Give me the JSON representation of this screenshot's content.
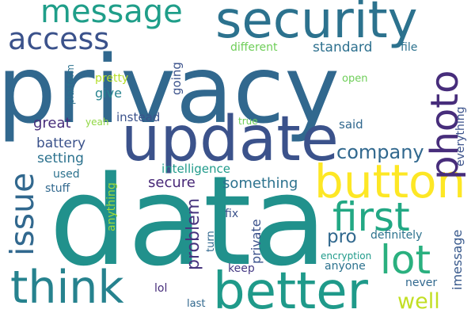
{
  "colors": {
    "deep_blue": "#3b528b",
    "blue": "#31688e",
    "steel_blue": "#2c728e",
    "teal_dark": "#26828e",
    "teal": "#1f9a8a",
    "green": "#35b779",
    "light_green": "#6ece58",
    "lime": "#b5de2b",
    "yellow": "#fde725",
    "indigo": "#482878",
    "purple": "#472d7b"
  },
  "words": [
    {
      "text": "privacy",
      "color": "#31688e"
    },
    {
      "text": "data",
      "color": "#21918c"
    },
    {
      "text": "security",
      "color": "#2c728e"
    },
    {
      "text": "update",
      "color": "#3b528b"
    },
    {
      "text": "better",
      "color": "#1f9a8a"
    },
    {
      "text": "think",
      "color": "#26828e"
    },
    {
      "text": "button",
      "color": "#fde725"
    },
    {
      "text": "first",
      "color": "#22a884"
    },
    {
      "text": "issue",
      "color": "#31688e"
    },
    {
      "text": "photo",
      "color": "#472d7b"
    },
    {
      "text": "lot",
      "color": "#2ab07f"
    },
    {
      "text": "access",
      "color": "#3b528b"
    },
    {
      "text": "message",
      "color": "#1f9e89"
    },
    {
      "text": "company",
      "color": "#31688e"
    },
    {
      "text": "well",
      "color": "#c2df23"
    },
    {
      "text": "problem",
      "color": "#46337e"
    },
    {
      "text": "something",
      "color": "#2c728e"
    },
    {
      "text": "pro",
      "color": "#31688e"
    },
    {
      "text": "standard",
      "color": "#2d708e"
    },
    {
      "text": "private",
      "color": "#3b528b"
    },
    {
      "text": "battery",
      "color": "#3b528b"
    },
    {
      "text": "setting",
      "color": "#2c728e"
    },
    {
      "text": "secure",
      "color": "#482878"
    },
    {
      "text": "imessage",
      "color": "#38598c"
    },
    {
      "text": "intelligence",
      "color": "#1f9a8a"
    },
    {
      "text": "give",
      "color": "#26828e"
    },
    {
      "text": "great",
      "color": "#472d7b"
    },
    {
      "text": "going",
      "color": "#3b528b"
    },
    {
      "text": "everything",
      "color": "#3b528b"
    },
    {
      "text": "definitely",
      "color": "#2c728e"
    },
    {
      "text": "keep",
      "color": "#443983"
    },
    {
      "text": "anyone",
      "color": "#2c728e"
    },
    {
      "text": "lol",
      "color": "#472d7b"
    },
    {
      "text": "never",
      "color": "#31688e"
    },
    {
      "text": "instead",
      "color": "#3b528b"
    },
    {
      "text": "said",
      "color": "#31688e"
    },
    {
      "text": "file",
      "color": "#2c728e"
    },
    {
      "text": "different",
      "color": "#6ece58"
    },
    {
      "text": "open",
      "color": "#6ece58"
    },
    {
      "text": "pretty",
      "color": "#b5de2b"
    },
    {
      "text": "yeah",
      "color": "#90d743"
    },
    {
      "text": "true",
      "color": "#6ece58"
    },
    {
      "text": "used",
      "color": "#2c728e"
    },
    {
      "text": "stuff",
      "color": "#31688e"
    },
    {
      "text": "anything",
      "color": "#a0da39"
    },
    {
      "text": "fix",
      "color": "#3b528b"
    },
    {
      "text": "turn",
      "color": "#31688e"
    },
    {
      "text": "encryption",
      "color": "#1f9a8a"
    },
    {
      "text": "last",
      "color": "#31688e"
    },
    {
      "text": "platform",
      "color": "#2c728e"
    }
  ]
}
